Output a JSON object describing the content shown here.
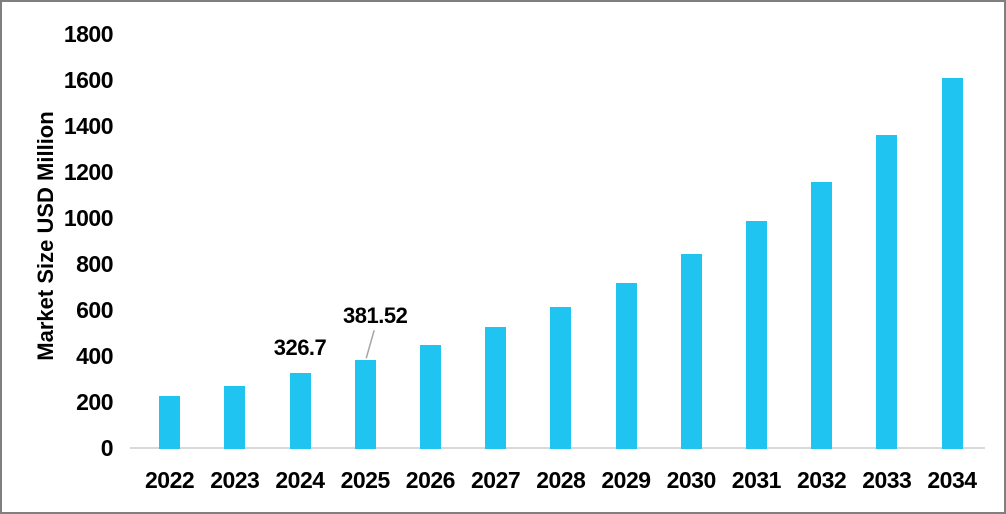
{
  "chart_data": {
    "type": "bar",
    "title": "",
    "xlabel": "",
    "ylabel": "Market Size USD Million",
    "categories": [
      "2022",
      "2023",
      "2024",
      "2025",
      "2026",
      "2027",
      "2028",
      "2029",
      "2030",
      "2031",
      "2032",
      "2033",
      "2034"
    ],
    "values": [
      228,
      268,
      326.7,
      381.52,
      447,
      524,
      615,
      719,
      844,
      988,
      1158,
      1360,
      1610
    ],
    "labeled_points": [
      {
        "category": "2024",
        "label": "326.7",
        "leader_line": false
      },
      {
        "category": "2025",
        "label": "381.52",
        "leader_line": true
      }
    ],
    "y_ticks": [
      0,
      200,
      400,
      600,
      800,
      1000,
      1200,
      1400,
      1600,
      1800
    ],
    "ylim": [
      0,
      1800
    ],
    "grid": false,
    "legend": null,
    "bar_color": "#20c4f0",
    "axis_line_color": "#d9d9d9",
    "leader_line_color": "#a6a6a6",
    "text_color": "#000000",
    "border_color": "#7f7f7f"
  }
}
